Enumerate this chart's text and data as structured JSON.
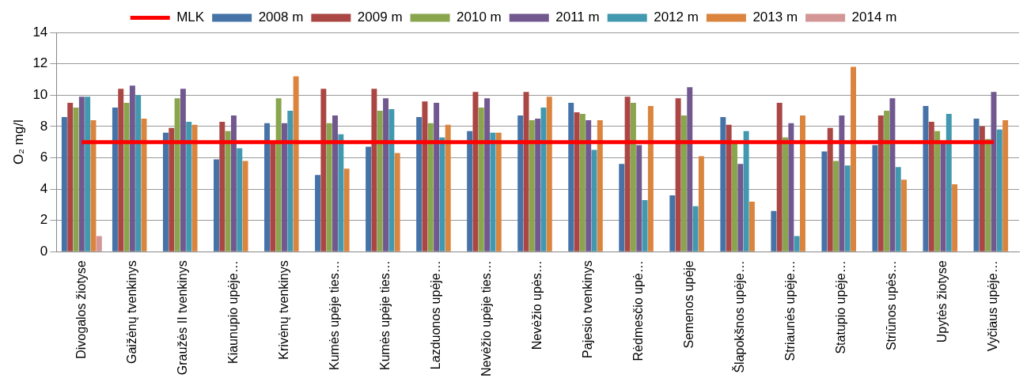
{
  "chart_data": {
    "type": "bar",
    "ylabel": "O₂ mg/l",
    "categories": [
      "Divogalos žiotyse",
      "Gaižėnų tvenkinys",
      "Graužės II tvenkinys",
      "Kiaunupio upėje…",
      "Krivėnų tvenkinys",
      "Kumės upėje ties…",
      "Kumės upėje ties…",
      "Lazduonos upėje…",
      "Nevėžio upėje ties…",
      "Nevėžio upės…",
      "Pajesio tvenkinys",
      "Rėdmesčio upė…",
      "Semenos upėje",
      "Šlapokšnos upėje…",
      "Striaunės upėje…",
      "Statupio upėje…",
      "Striūnos upės…",
      "Upytės žiotyse",
      "Vyčiaus upėje…"
    ],
    "series": [
      {
        "name": "2008 m",
        "color": "#4572a7",
        "values": [
          8.6,
          9.2,
          7.6,
          5.9,
          8.2,
          4.9,
          6.7,
          8.6,
          7.7,
          8.7,
          9.5,
          5.6,
          3.6,
          8.6,
          2.6,
          6.4,
          6.8,
          9.3,
          8.5
        ]
      },
      {
        "name": "2009 m",
        "color": "#aa4643",
        "values": [
          9.5,
          10.4,
          7.9,
          8.3,
          7.0,
          10.4,
          10.4,
          9.6,
          10.2,
          10.2,
          8.9,
          9.9,
          9.8,
          8.1,
          9.5,
          7.9,
          8.7,
          8.3,
          8.0
        ]
      },
      {
        "name": "2010 m",
        "color": "#89a54e",
        "values": [
          9.2,
          9.5,
          9.8,
          7.7,
          9.8,
          8.2,
          9.0,
          8.2,
          9.2,
          8.4,
          8.8,
          9.5,
          8.7,
          6.9,
          7.3,
          5.8,
          9.0,
          7.7,
          7.2
        ]
      },
      {
        "name": "2011 m",
        "color": "#71588f",
        "values": [
          9.9,
          10.6,
          10.4,
          8.7,
          8.2,
          8.7,
          9.8,
          9.5,
          9.8,
          8.5,
          8.4,
          6.8,
          10.5,
          5.6,
          8.2,
          8.7,
          9.8,
          7.0,
          10.2
        ]
      },
      {
        "name": "2012 m",
        "color": "#4198af",
        "values": [
          9.9,
          10.0,
          8.3,
          6.6,
          9.0,
          7.5,
          9.1,
          7.3,
          7.6,
          9.2,
          6.5,
          3.3,
          2.9,
          7.7,
          1.0,
          5.5,
          5.4,
          8.8,
          7.8
        ]
      },
      {
        "name": "2013 m",
        "color": "#db843d",
        "values": [
          8.4,
          8.5,
          8.1,
          5.8,
          11.2,
          5.3,
          6.3,
          8.1,
          7.6,
          9.9,
          8.4,
          9.3,
          6.1,
          3.2,
          8.7,
          11.8,
          4.6,
          4.3,
          8.4
        ]
      },
      {
        "name": "2014 m",
        "color": "#d39595",
        "values": [
          1.0,
          null,
          null,
          null,
          null,
          null,
          null,
          null,
          null,
          null,
          null,
          null,
          null,
          null,
          null,
          null,
          null,
          null,
          null
        ]
      },
      {
        "name": "MLK",
        "type": "line",
        "color": "#ff0000",
        "marker": "none",
        "values": [
          7,
          7,
          7,
          7,
          7,
          7,
          7,
          7,
          7,
          7,
          7,
          7,
          7,
          7,
          7,
          7,
          7,
          7,
          7
        ]
      }
    ],
    "ylim": [
      0,
      14
    ],
    "yticks": [
      0,
      2,
      4,
      6,
      8,
      10,
      12,
      14
    ],
    "grid": "y",
    "legend": "top"
  }
}
